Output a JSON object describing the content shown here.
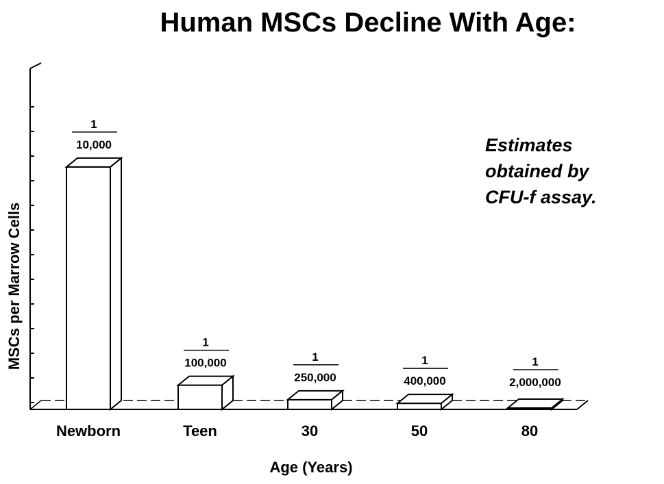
{
  "chart_data": {
    "type": "bar",
    "title": "Human MSCs Decline With Age:",
    "xlabel": "Age (Years)",
    "ylabel": "MSCs per Marrow Cells",
    "categories": [
      "Newborn",
      "Teen",
      "30",
      "50",
      "80"
    ],
    "series": [
      {
        "values": [
          0.0001,
          1e-05,
          4e-06,
          2.5e-06,
          5e-07
        ],
        "labels": [
          {
            "numerator": "1",
            "denominator": "10,000"
          },
          {
            "numerator": "1",
            "denominator": "100,000"
          },
          {
            "numerator": "1",
            "denominator": "250,000"
          },
          {
            "numerator": "1",
            "denominator": "400,000"
          },
          {
            "numerator": "1",
            "denominator": "2,000,000"
          }
        ]
      }
    ],
    "annotation": [
      "Estimates",
      "obtained by",
      "CFU-f assay."
    ],
    "ylim": [
      0,
      0.000135
    ],
    "style": "3d-bar",
    "grid": false,
    "legend": "none",
    "colors": {
      "bar_fill": "#ffffff",
      "bar_stroke": "#000000",
      "axis": "#000000"
    }
  }
}
